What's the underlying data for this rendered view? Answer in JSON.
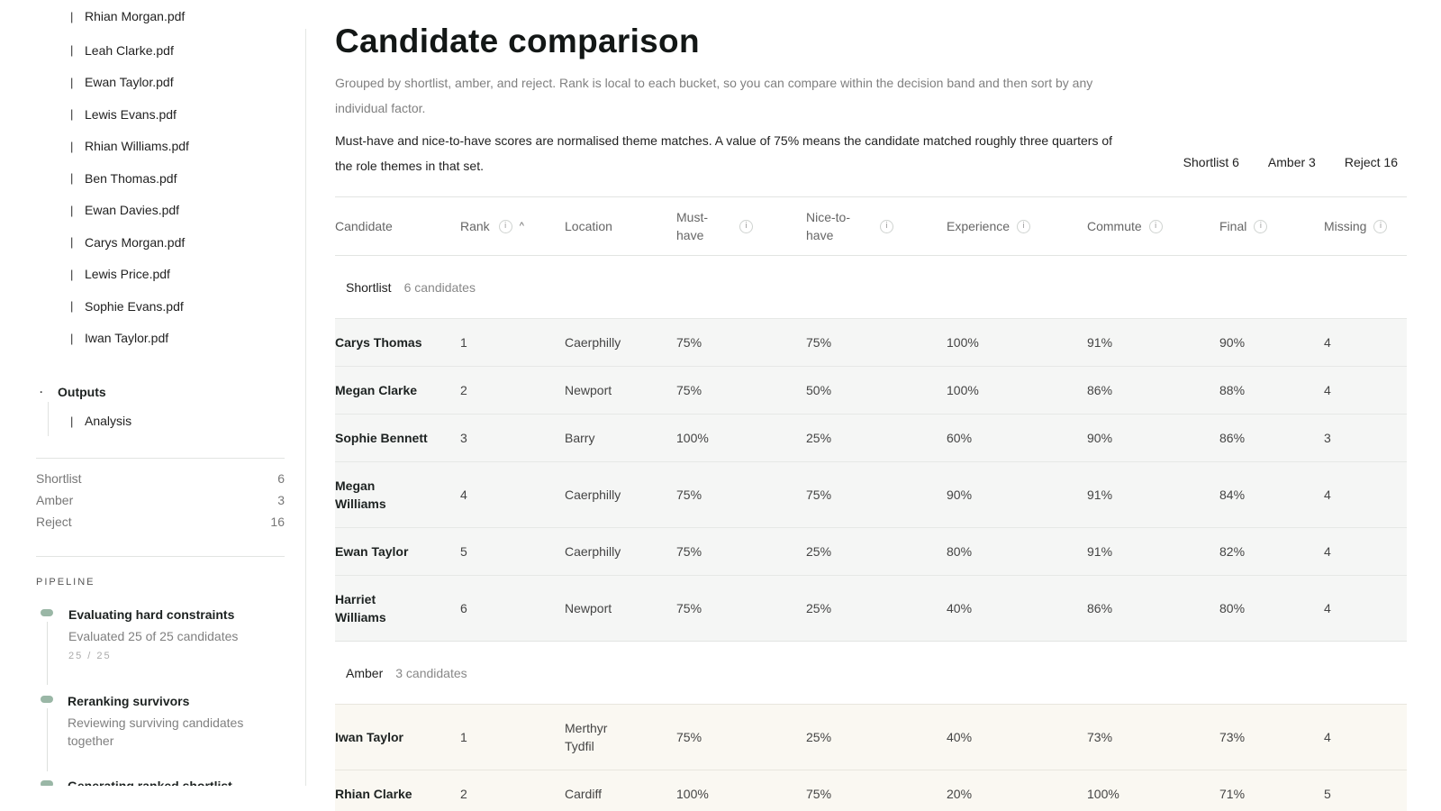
{
  "sidebar": {
    "partial_file": "Rhian Morgan.pdf",
    "files": [
      "Leah Clarke.pdf",
      "Ewan Taylor.pdf",
      "Lewis Evans.pdf",
      "Rhian Williams.pdf",
      "Ben Thomas.pdf",
      "Ewan Davies.pdf",
      "Carys Morgan.pdf",
      "Lewis Price.pdf",
      "Sophie Evans.pdf",
      "Iwan Taylor.pdf"
    ],
    "outputs_label": "Outputs",
    "outputs_items": [
      "Analysis"
    ],
    "counts": [
      {
        "label": "Shortlist",
        "value": "6"
      },
      {
        "label": "Amber",
        "value": "3"
      },
      {
        "label": "Reject",
        "value": "16"
      }
    ],
    "pipeline_label": "PIPELINE",
    "steps": [
      {
        "title": "Evaluating hard constraints",
        "desc": "Evaluated 25 of 25 candidates",
        "progress": "25 / 25"
      },
      {
        "title": "Reranking survivors",
        "desc": "Reviewing surviving candidates together"
      },
      {
        "title": "Generating ranked shortlist"
      }
    ]
  },
  "main": {
    "title": "Candidate comparison",
    "subtitle": "Grouped by shortlist, amber, and reject. Rank is local to each bucket, so you can compare within the decision band and then sort by any individual factor.",
    "note": "Must-have and nice-to-have scores are normalised theme matches. A value of 75% means the candidate matched roughly three quarters of the role themes in that set.",
    "summary": {
      "shortlist": "Shortlist 6",
      "amber": "Amber 3",
      "reject": "Reject 16"
    },
    "columns": {
      "candidate": "Candidate",
      "rank": "Rank",
      "location": "Location",
      "must_have": "Must-have",
      "nice_to_have": "Nice-to-have",
      "experience": "Experience",
      "commute": "Commute",
      "final": "Final",
      "missing": "Missing"
    },
    "info_glyph": "i",
    "sort_glyph": "^",
    "groups": {
      "shortlist": {
        "name": "Shortlist",
        "count": "6 candidates",
        "rows": [
          {
            "name": "Carys Thomas",
            "rank": "1",
            "location": "Caerphilly",
            "must": "75%",
            "nice": "75%",
            "exp": "100%",
            "commute": "91%",
            "final": "90%",
            "missing": "4"
          },
          {
            "name": "Megan Clarke",
            "rank": "2",
            "location": "Newport",
            "must": "75%",
            "nice": "50%",
            "exp": "100%",
            "commute": "86%",
            "final": "88%",
            "missing": "4"
          },
          {
            "name": "Sophie Bennett",
            "rank": "3",
            "location": "Barry",
            "must": "100%",
            "nice": "25%",
            "exp": "60%",
            "commute": "90%",
            "final": "86%",
            "missing": "3"
          },
          {
            "name": "Megan Williams",
            "rank": "4",
            "location": "Caerphilly",
            "must": "75%",
            "nice": "75%",
            "exp": "90%",
            "commute": "91%",
            "final": "84%",
            "missing": "4"
          },
          {
            "name": "Ewan Taylor",
            "rank": "5",
            "location": "Caerphilly",
            "must": "75%",
            "nice": "25%",
            "exp": "80%",
            "commute": "91%",
            "final": "82%",
            "missing": "4"
          },
          {
            "name": "Harriet Williams",
            "rank": "6",
            "location": "Newport",
            "must": "75%",
            "nice": "25%",
            "exp": "40%",
            "commute": "86%",
            "final": "80%",
            "missing": "4"
          }
        ]
      },
      "amber": {
        "name": "Amber",
        "count": "3 candidates",
        "rows": [
          {
            "name": "Iwan Taylor",
            "rank": "1",
            "location": "Merthyr Tydfil",
            "must": "75%",
            "nice": "25%",
            "exp": "40%",
            "commute": "73%",
            "final": "73%",
            "missing": "4"
          },
          {
            "name": "Rhian Clarke",
            "rank": "2",
            "location": "Cardiff",
            "must": "100%",
            "nice": "75%",
            "exp": "20%",
            "commute": "100%",
            "final": "71%",
            "missing": "5"
          }
        ]
      }
    }
  }
}
